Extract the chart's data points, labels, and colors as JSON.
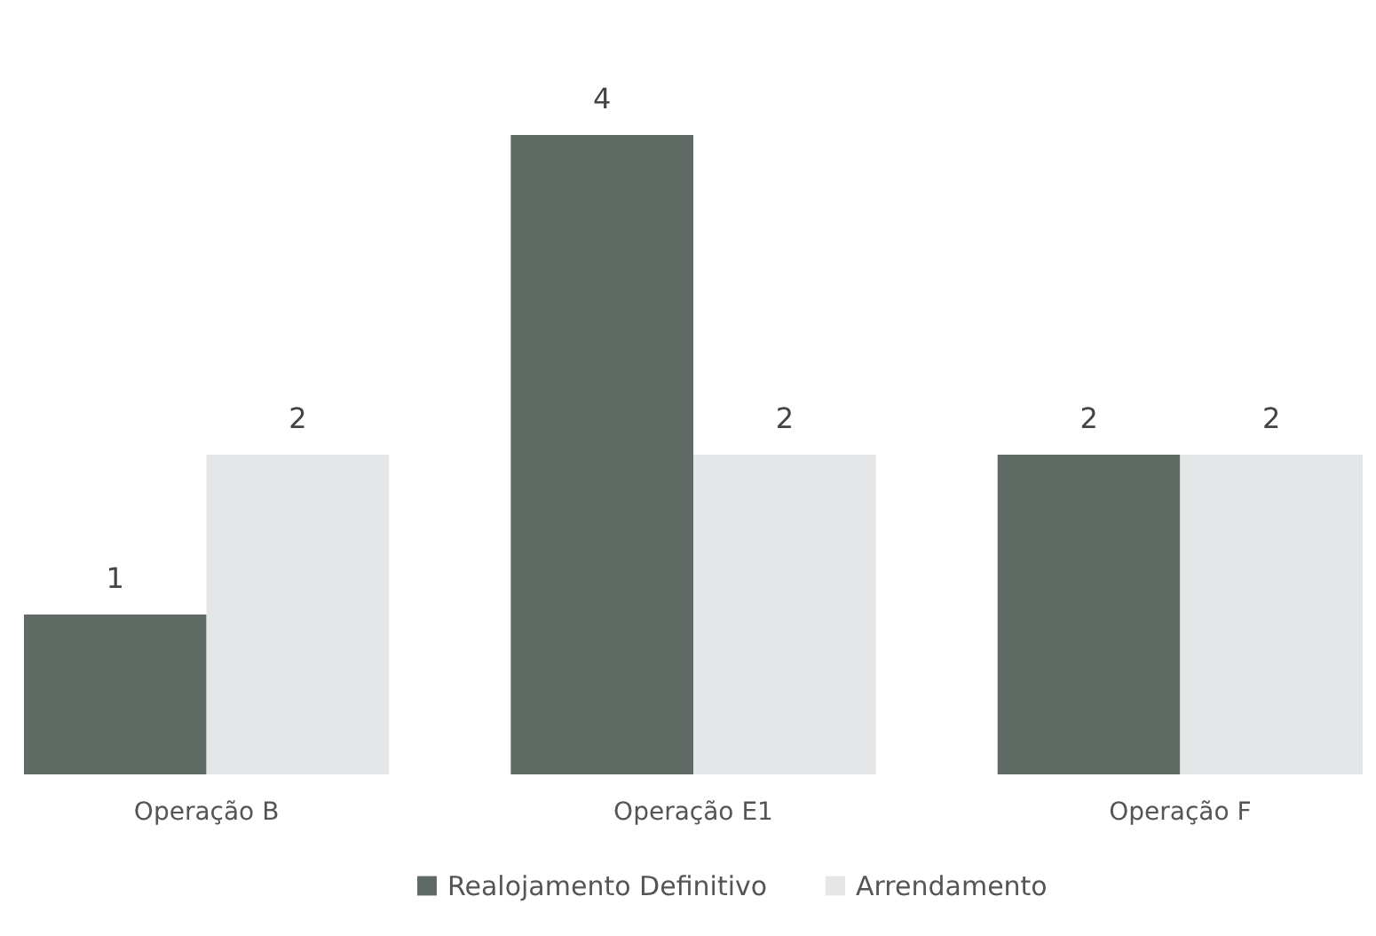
{
  "chart_data": {
    "type": "bar",
    "categories": [
      "Operação B",
      "Operação E1",
      "Operação F"
    ],
    "series": [
      {
        "name": "Realojamento Definitivo",
        "color": "#5f6a65",
        "values": [
          1,
          4,
          2
        ]
      },
      {
        "name": "Arrendamento",
        "color": "#e4e6e8",
        "values": [
          2,
          2,
          2
        ]
      }
    ],
    "data_labels": true,
    "legend": "bottom"
  }
}
